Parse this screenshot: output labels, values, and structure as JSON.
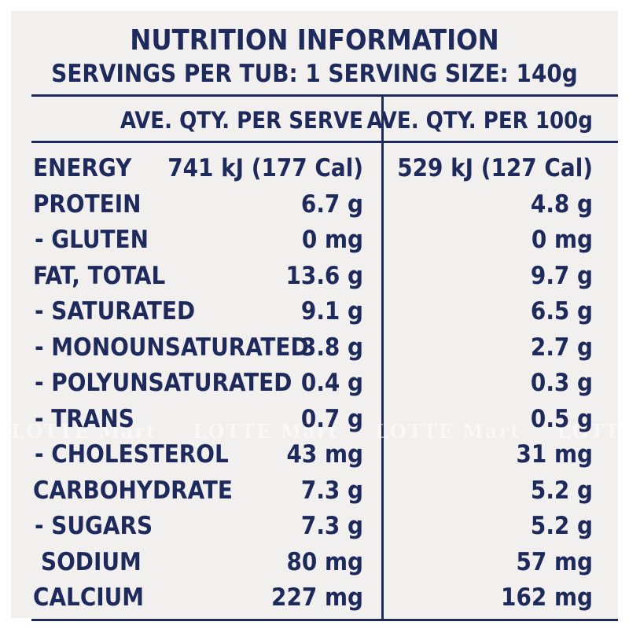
{
  "header": {
    "title": "NUTRITION INFORMATION",
    "subtitle": "SERVINGS PER TUB: 1  SERVING SIZE: 140g"
  },
  "columns": {
    "per_serve": "AVE. QTY. PER SERVE",
    "per_100g": "AVE. QTY. PER 100g"
  },
  "rows": [
    {
      "name": "ENERGY",
      "per_serve": "741 kJ (177 Cal)",
      "per_100g": "529 kJ (127 Cal)"
    },
    {
      "name": "PROTEIN",
      "per_serve": "6.7 g",
      "per_100g": "4.8 g"
    },
    {
      "name": "- GLUTEN",
      "per_serve": "0 mg",
      "per_100g": "0 mg"
    },
    {
      "name": "FAT, TOTAL",
      "per_serve": "13.6 g",
      "per_100g": "9.7 g"
    },
    {
      "name": "- SATURATED",
      "per_serve": "9.1 g",
      "per_100g": "6.5 g"
    },
    {
      "name": "- MONOUNSATURATED",
      "per_serve": "3.8 g",
      "per_100g": "2.7 g"
    },
    {
      "name": "- POLYUNSATURATED",
      "per_serve": "0.4 g",
      "per_100g": "0.3 g"
    },
    {
      "name": "- TRANS",
      "per_serve": "0.7 g",
      "per_100g": "0.5 g"
    },
    {
      "name": "- CHOLESTEROL",
      "per_serve": "43 mg",
      "per_100g": "31 mg"
    },
    {
      "name": "CARBOHYDRATE",
      "per_serve": "7.3 g",
      "per_100g": "5.2 g"
    },
    {
      "name": "- SUGARS",
      "per_serve": "7.3 g",
      "per_100g": "5.2 g"
    },
    {
      "name": "SODIUM",
      "per_serve": "80 mg",
      "per_100g": "57 mg"
    },
    {
      "name": "CALCIUM",
      "per_serve": "227 mg",
      "per_100g": "162 mg"
    }
  ],
  "watermark": [
    "LOTTE Mart",
    "LOTTE Mart",
    "LOTTE Mart",
    "LOTTE Mart"
  ],
  "colors": {
    "ink": "#1f2a5c",
    "paper": "#f1f0ee"
  }
}
